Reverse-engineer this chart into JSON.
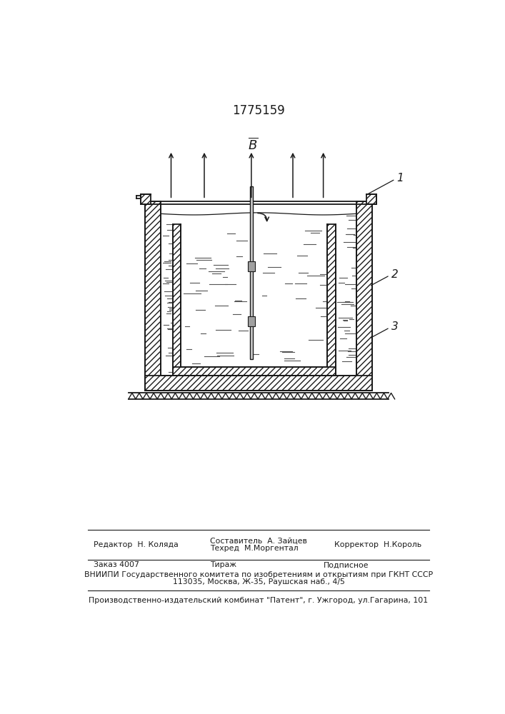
{
  "patent_number": "1775159",
  "background_color": "#ffffff",
  "line_color": "#1a1a1a",
  "label_1": "1",
  "label_2": "2",
  "label_3": "3",
  "footer_row1": [
    "Редактор  Н. Коляда",
    "Составитель  А. Зайцев",
    "Техред  М.Моргентал",
    "Корректор  Н.Король"
  ],
  "footer_row2_col1": "Заказ 4007",
  "footer_row2_col2": "Тираж",
  "footer_row2_col3": "Подписное",
  "footer_vniiipi": "ВНИИПИ Государственного комитета по изобретениям и открытиям при ГКНТ СССР",
  "footer_address": "113035, Москва, Ж-35, Раушская наб., 4/5",
  "footer_patent": "Производственно-издательский комбинат \"Патент\", г. Ужгород, ул.Гагарина, 101"
}
